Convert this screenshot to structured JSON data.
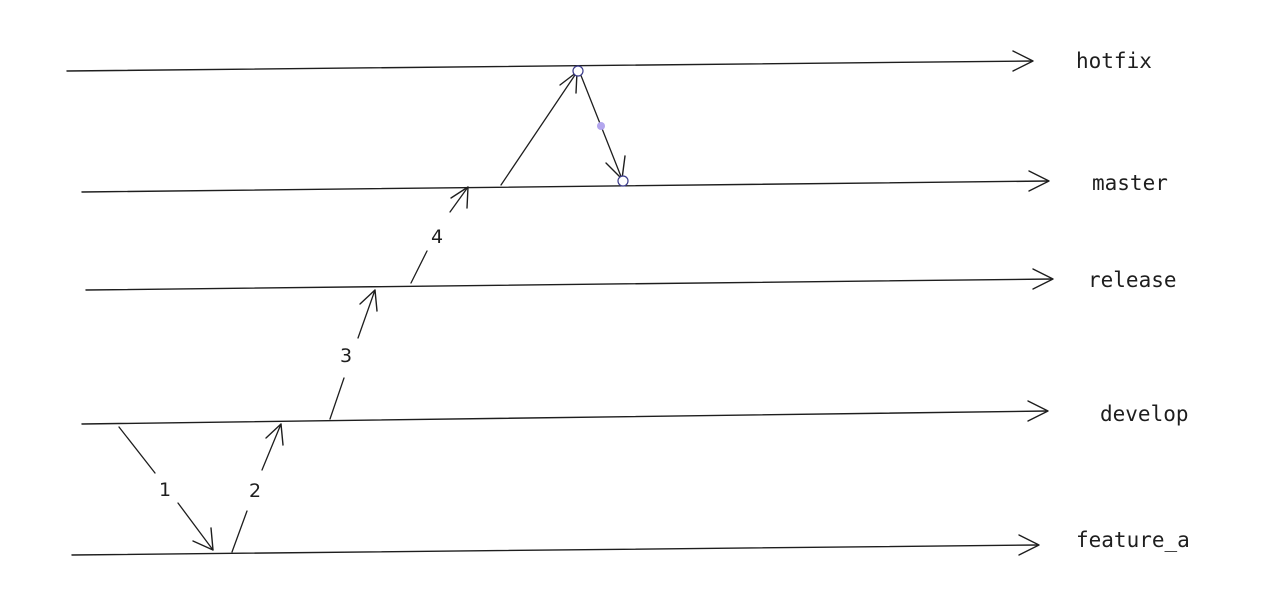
{
  "branches": [
    {
      "id": "hotfix",
      "label": "hotfix"
    },
    {
      "id": "master",
      "label": "master"
    },
    {
      "id": "release",
      "label": "release"
    },
    {
      "id": "develop",
      "label": "develop"
    },
    {
      "id": "feature_a",
      "label": "feature_a"
    }
  ],
  "steps": [
    {
      "label": "1",
      "from": "develop",
      "to": "feature_a"
    },
    {
      "label": "2",
      "from": "feature_a",
      "to": "develop"
    },
    {
      "label": "3",
      "from": "develop",
      "to": "release"
    },
    {
      "label": "4",
      "from": "release",
      "to": "master"
    },
    {
      "label": "",
      "from": "master",
      "to": "hotfix"
    },
    {
      "label": "",
      "from": "hotfix",
      "to": "master"
    }
  ],
  "colors": {
    "stroke": "#1e1e1e",
    "node_outline": "#3b3b8a",
    "midpoint_dot": "#b3a6ee",
    "background": "#ffffff"
  }
}
